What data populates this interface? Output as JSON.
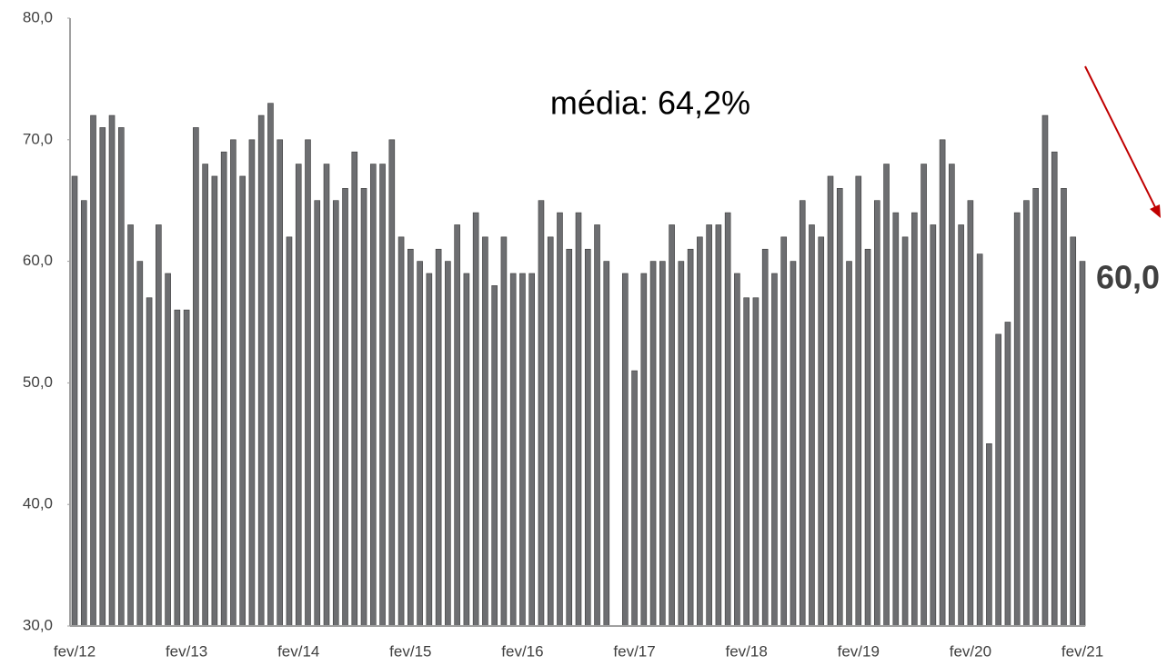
{
  "chart_data": {
    "type": "bar",
    "annotations": [
      "média: 64,2%",
      "60,0"
    ],
    "categories": [
      "fev/12",
      null,
      null,
      null,
      null,
      null,
      null,
      null,
      null,
      null,
      null,
      null,
      "fev/13",
      null,
      null,
      null,
      null,
      null,
      null,
      null,
      null,
      null,
      null,
      null,
      "fev/14",
      null,
      null,
      null,
      null,
      null,
      null,
      null,
      null,
      null,
      null,
      null,
      "fev/15",
      null,
      null,
      null,
      null,
      null,
      null,
      null,
      null,
      null,
      null,
      null,
      "fev/16",
      null,
      null,
      null,
      null,
      null,
      null,
      null,
      null,
      null,
      null,
      null,
      "fev/17",
      null,
      null,
      null,
      null,
      null,
      null,
      null,
      null,
      null,
      null,
      null,
      "fev/18",
      null,
      null,
      null,
      null,
      null,
      null,
      null,
      null,
      null,
      null,
      null,
      "fev/19",
      null,
      null,
      null,
      null,
      null,
      null,
      null,
      null,
      null,
      null,
      null,
      "fev/20",
      null,
      null,
      null,
      null,
      null,
      null,
      null,
      null,
      null,
      null,
      null,
      "fev/21"
    ],
    "values": [
      67,
      65,
      72,
      71,
      72,
      71,
      63,
      60,
      57,
      63,
      59,
      56,
      56,
      71,
      68,
      67,
      69,
      70,
      67,
      70,
      72,
      73,
      70,
      62,
      68,
      70,
      65,
      68,
      65,
      66,
      69,
      66,
      68,
      68,
      70,
      62,
      61,
      60,
      59,
      61,
      60,
      63,
      59,
      64,
      62,
      58,
      62,
      59,
      59,
      59,
      65,
      62,
      64,
      61,
      64,
      61,
      63,
      60,
      null,
      59,
      51,
      59,
      60,
      60,
      63,
      60,
      61,
      62,
      63,
      63,
      64,
      59,
      57,
      57,
      61,
      59,
      62,
      60,
      65,
      63,
      62,
      67,
      66,
      60,
      67,
      61,
      65,
      68,
      64,
      62,
      64,
      68,
      63,
      70,
      68,
      63,
      65,
      60.6,
      45,
      54,
      55,
      64,
      65,
      66,
      72,
      69,
      66,
      62,
      60
    ],
    "color": "#6d6e71",
    "ylim": [
      30,
      80
    ],
    "yticks": [
      {
        "value": 30,
        "label": "30,0"
      },
      {
        "value": 40,
        "label": "40,0"
      },
      {
        "value": 50,
        "label": "50,0"
      },
      {
        "value": 60,
        "label": "60,0"
      },
      {
        "value": 70,
        "label": "70,0"
      },
      {
        "value": 80,
        "label": "80,0"
      }
    ],
    "grid": false
  }
}
